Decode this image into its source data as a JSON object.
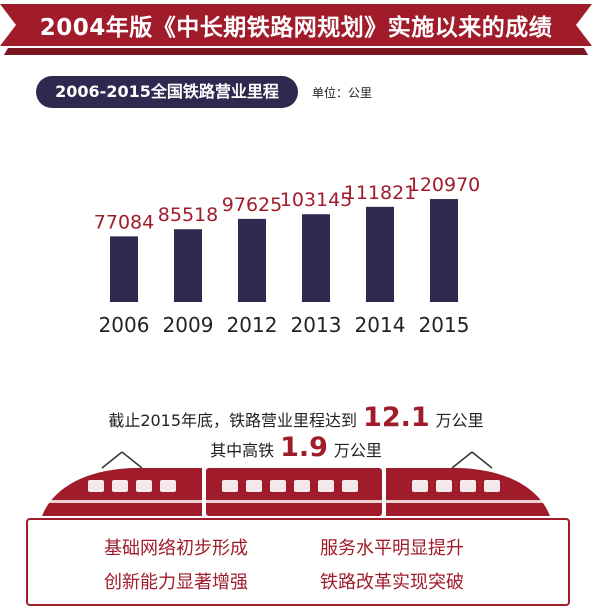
{
  "banner": {
    "title": "2004年版《中长期铁路网规划》实施以来的成绩"
  },
  "subtitle": "2006-2015全国铁路营业里程",
  "unit": "单位：公里",
  "chart_data": {
    "type": "bar",
    "title": "2006-2015全国铁路营业里程",
    "unit": "单位：公里",
    "categories": [
      "2006",
      "2009",
      "2012",
      "2013",
      "2014",
      "2015"
    ],
    "values": [
      77084,
      85518,
      97625,
      103145,
      111821,
      120970
    ],
    "bar_color": "#2e2a4f",
    "label_color": "#a01c2b",
    "grid": false
  },
  "summary": {
    "line1_prefix": "截止2015年底，铁路营业里程达到",
    "line1_value": "12.1",
    "line1_suffix": "万公里",
    "line2_prefix": "其中高铁",
    "line2_value": "1.9",
    "line2_suffix": "万公里"
  },
  "features": [
    "基础网络初步形成",
    "服务水平明显提升",
    "创新能力显著增强",
    "铁路改革实现突破"
  ],
  "colors": {
    "accent": "#a01c2b",
    "bar": "#2e2a4f"
  }
}
